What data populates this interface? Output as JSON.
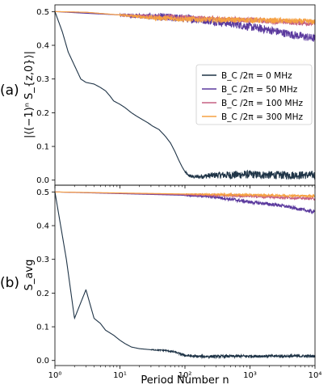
{
  "chart_data": [
    {
      "type": "line",
      "panel_label": "(a)",
      "ylabel": "|⟨(−1)ⁿ S_{z,0}⟩|",
      "xlabel": "",
      "xscale": "log",
      "xlim": [
        1,
        10000
      ],
      "ylim": [
        -0.015,
        0.52
      ],
      "yticks": [
        "0.0",
        "0.1",
        "0.2",
        "0.3",
        "0.4",
        "0.5"
      ],
      "legend": {
        "placement": "right"
      },
      "series": [
        {
          "name": "B_C /2π = 0 MHz",
          "color": "#1f3447",
          "points": [
            [
              1,
              0.5
            ],
            [
              1.3,
              0.44
            ],
            [
              1.6,
              0.38
            ],
            [
              2,
              0.34
            ],
            [
              2.5,
              0.3
            ],
            [
              3,
              0.29
            ],
            [
              4,
              0.285
            ],
            [
              5,
              0.275
            ],
            [
              6,
              0.265
            ],
            [
              7,
              0.25
            ],
            [
              8,
              0.235
            ],
            [
              10,
              0.225
            ],
            [
              12,
              0.215
            ],
            [
              15,
              0.2
            ],
            [
              18,
              0.19
            ],
            [
              22,
              0.18
            ],
            [
              27,
              0.17
            ],
            [
              32,
              0.16
            ],
            [
              40,
              0.15
            ],
            [
              50,
              0.13
            ],
            [
              60,
              0.11
            ],
            [
              70,
              0.085
            ],
            [
              80,
              0.06
            ],
            [
              90,
              0.04
            ],
            [
              100,
              0.025
            ],
            [
              110,
              0.015
            ],
            [
              130,
              0.01
            ],
            [
              160,
              0.01
            ],
            [
              200,
              0.012
            ],
            [
              300,
              0.015
            ],
            [
              500,
              0.015
            ],
            [
              1000,
              0.017
            ],
            [
              2000,
              0.015
            ],
            [
              5000,
              0.015
            ],
            [
              10000,
              0.015
            ]
          ],
          "noise_from": 100,
          "noise_amp": 0.012
        },
        {
          "name": "B_C /2π = 50 MHz",
          "color": "#5b3a9e",
          "points": [
            [
              1,
              0.5
            ],
            [
              3,
              0.495
            ],
            [
              10,
              0.49
            ],
            [
              30,
              0.485
            ],
            [
              100,
              0.48
            ],
            [
              200,
              0.475
            ],
            [
              500,
              0.465
            ],
            [
              1000,
              0.455
            ],
            [
              2000,
              0.445
            ],
            [
              5000,
              0.43
            ],
            [
              10000,
              0.42
            ]
          ],
          "noise_from": 10,
          "noise_amp": 0.012
        },
        {
          "name": "B_C /2π = 100 MHz",
          "color": "#c56183",
          "points": [
            [
              1,
              0.5
            ],
            [
              3,
              0.498
            ],
            [
              10,
              0.49
            ],
            [
              30,
              0.485
            ],
            [
              100,
              0.482
            ],
            [
              300,
              0.478
            ],
            [
              1000,
              0.475
            ],
            [
              3000,
              0.47
            ],
            [
              10000,
              0.465
            ]
          ],
          "noise_from": 10,
          "noise_amp": 0.008
        },
        {
          "name": "B_C /2π = 300 MHz",
          "color": "#f5a142",
          "points": [
            [
              1,
              0.5
            ],
            [
              3,
              0.498
            ],
            [
              10,
              0.49
            ],
            [
              30,
              0.482
            ],
            [
              100,
              0.478
            ],
            [
              300,
              0.476
            ],
            [
              1000,
              0.475
            ],
            [
              3000,
              0.473
            ],
            [
              10000,
              0.47
            ]
          ],
          "noise_from": 10,
          "noise_amp": 0.008
        }
      ]
    },
    {
      "type": "line",
      "panel_label": "(b)",
      "ylabel": "S_avg",
      "xlabel": "Period Number n",
      "xscale": "log",
      "xlim": [
        1,
        10000
      ],
      "ylim": [
        -0.015,
        0.52
      ],
      "yticks": [
        "0.0",
        "0.1",
        "0.2",
        "0.3",
        "0.4",
        "0.5"
      ],
      "xticks": [
        "10⁰",
        "10¹",
        "10²",
        "10³",
        "10⁴"
      ],
      "series": [
        {
          "name": "B_C /2π = 0 MHz",
          "color": "#1f3447",
          "points": [
            [
              1,
              0.5
            ],
            [
              1.5,
              0.3
            ],
            [
              2,
              0.125
            ],
            [
              3,
              0.21
            ],
            [
              4,
              0.125
            ],
            [
              5,
              0.11
            ],
            [
              6,
              0.09
            ],
            [
              8,
              0.075
            ],
            [
              10,
              0.06
            ],
            [
              12,
              0.05
            ],
            [
              15,
              0.04
            ],
            [
              20,
              0.035
            ],
            [
              30,
              0.032
            ],
            [
              50,
              0.03
            ],
            [
              70,
              0.025
            ],
            [
              100,
              0.015
            ],
            [
              150,
              0.012
            ],
            [
              300,
              0.012
            ],
            [
              1000,
              0.013
            ],
            [
              10000,
              0.013
            ]
          ],
          "noise_from": 30,
          "noise_amp": 0.004
        },
        {
          "name": "B_C /2π = 50 MHz",
          "color": "#5b3a9e",
          "points": [
            [
              1,
              0.5
            ],
            [
              10,
              0.495
            ],
            [
              100,
              0.49
            ],
            [
              300,
              0.485
            ],
            [
              1000,
              0.47
            ],
            [
              3000,
              0.46
            ],
            [
              10000,
              0.44
            ]
          ],
          "noise_from": 100,
          "noise_amp": 0.005
        },
        {
          "name": "B_C /2π = 100 MHz",
          "color": "#c56183",
          "points": [
            [
              1,
              0.5
            ],
            [
              10,
              0.496
            ],
            [
              100,
              0.492
            ],
            [
              1000,
              0.488
            ],
            [
              3000,
              0.484
            ],
            [
              10000,
              0.48
            ]
          ],
          "noise_from": 100,
          "noise_amp": 0.004
        },
        {
          "name": "B_C /2π = 300 MHz",
          "color": "#f5a142",
          "points": [
            [
              1,
              0.5
            ],
            [
              10,
              0.497
            ],
            [
              100,
              0.494
            ],
            [
              1000,
              0.491
            ],
            [
              10000,
              0.488
            ]
          ],
          "noise_from": 100,
          "noise_amp": 0.003
        }
      ]
    }
  ]
}
